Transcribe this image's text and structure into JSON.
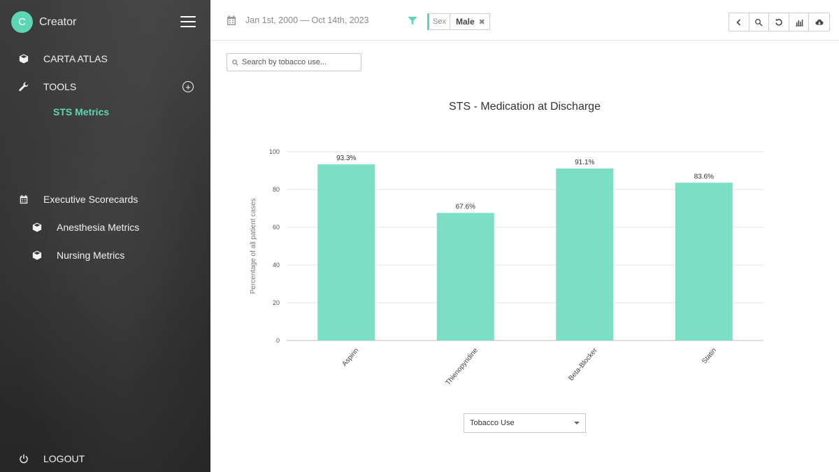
{
  "app": {
    "avatar_letter": "C",
    "name": "Creator"
  },
  "sidebar": {
    "items": [
      {
        "label": "CARTA ATLAS",
        "icon": "cube-icon"
      },
      {
        "label": "TOOLS",
        "icon": "wrench-icon"
      },
      {
        "label": "STS Metrics",
        "active": true
      },
      {
        "label": "Executive Scorecards",
        "icon": "calendar-icon"
      },
      {
        "label": "Anesthesia Metrics",
        "icon": "cube-icon"
      },
      {
        "label": "Nursing Metrics",
        "icon": "cube-icon"
      }
    ],
    "logout_label": "LOGOUT"
  },
  "topbar": {
    "date_range": "Jan 1st, 2000 — Oct 14th, 2023",
    "filter": {
      "key": "Sex",
      "value": "Male"
    },
    "toolbar_icons": [
      "chevron-left-icon",
      "zoom-icon",
      "reset-icon",
      "bar-chart-icon",
      "cloud-download-icon"
    ]
  },
  "search": {
    "placeholder": "Search by tobacco use..."
  },
  "chart_data": {
    "type": "bar",
    "title": "STS - Medication at Discharge",
    "xlabel": "",
    "ylabel": "Percentage of all patient cases",
    "categories": [
      "Aspirin",
      "Thienopyridine",
      "Beta-Blocker",
      "Statin"
    ],
    "values": [
      93.3,
      67.6,
      91.1,
      83.6
    ],
    "data_labels": [
      "93.3%",
      "67.6%",
      "91.1%",
      "83.6%"
    ],
    "ylim": [
      0,
      100
    ],
    "yticks": [
      0,
      20,
      40,
      60,
      80,
      100
    ],
    "grid": true,
    "color": "#7adfc4"
  },
  "dropdown": {
    "selected": "Tobacco Use"
  },
  "colors": {
    "accent": "#5dd6b4",
    "bar": "#7adfc4"
  }
}
